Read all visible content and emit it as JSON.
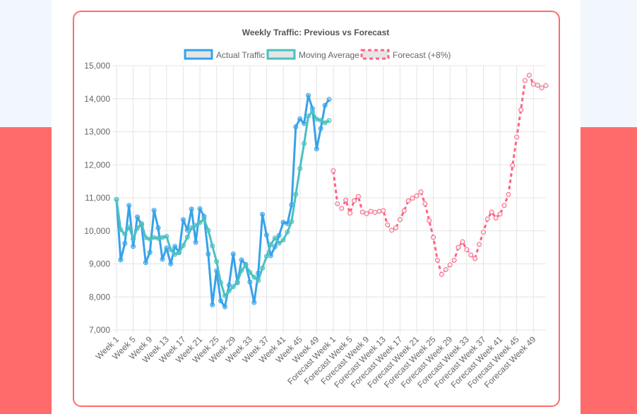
{
  "chart_data": {
    "type": "line",
    "title": "Weekly Traffic: Previous vs Forecast",
    "xlabel": "",
    "ylabel": "",
    "ylim": [
      7000,
      15000
    ],
    "yticks": [
      "7,000",
      "8,000",
      "9,000",
      "10,000",
      "11,000",
      "12,000",
      "13,000",
      "14,000",
      "15,000"
    ],
    "grid": true,
    "legend": "top",
    "categories_actual_prefix": "Week",
    "categories_forecast_prefix": "Forecast Week",
    "series": [
      {
        "name": "Actual Traffic",
        "color": "#36a2eb",
        "dashed": false,
        "offset": 0,
        "values": [
          10950,
          9120,
          9620,
          10770,
          9530,
          10420,
          10180,
          9040,
          9350,
          10620,
          10090,
          9140,
          9480,
          9000,
          9530,
          9350,
          10340,
          10020,
          10660,
          9650,
          10670,
          10440,
          9300,
          7760,
          8790,
          7880,
          7700,
          8360,
          9300,
          8430,
          9120,
          8980,
          8450,
          7830,
          8720,
          10500,
          9870,
          9250,
          9520,
          9860,
          10260,
          10220,
          10790,
          13150,
          13390,
          13250,
          14100,
          13700,
          12480,
          13100,
          13800,
          13980
        ]
      },
      {
        "name": "Moving Average",
        "color": "#4bc0c0",
        "dashed": false,
        "offset": 0,
        "values": [
          10950,
          10035,
          9897,
          10115,
          9760,
          10085,
          10225,
          9793,
          9748,
          9798,
          9775,
          9800,
          9833,
          9428,
          9288,
          9340,
          9555,
          9810,
          10093,
          10168,
          10250,
          10355,
          10015,
          9543,
          9073,
          8433,
          8033,
          8183,
          8310,
          8448,
          8803,
          8958,
          8745,
          8595,
          8495,
          8875,
          9230,
          9585,
          9785,
          9625,
          9723,
          9965,
          10283,
          11105,
          11888,
          12645,
          13473,
          13610,
          13383,
          13345,
          13270,
          13340
        ]
      },
      {
        "name": "Forecast (+8%)",
        "color": "#ff6384",
        "dashed": true,
        "offset": 52,
        "values": [
          11820,
          10820,
          10680,
          10930,
          10540,
          10910,
          11040,
          10570,
          10520,
          10590,
          10560,
          10590,
          10610,
          10180,
          10020,
          10090,
          10340,
          10610,
          10910,
          10990,
          11060,
          11180,
          10820,
          10310,
          9800,
          9110,
          8680,
          8830,
          8970,
          9110,
          9500,
          9670,
          9430,
          9270,
          9160,
          9590,
          9960,
          10360,
          10570,
          10390,
          10510,
          10770,
          11100,
          11980,
          12840,
          13660,
          14550,
          14710,
          14440,
          14410,
          14330,
          14400
        ]
      }
    ]
  }
}
